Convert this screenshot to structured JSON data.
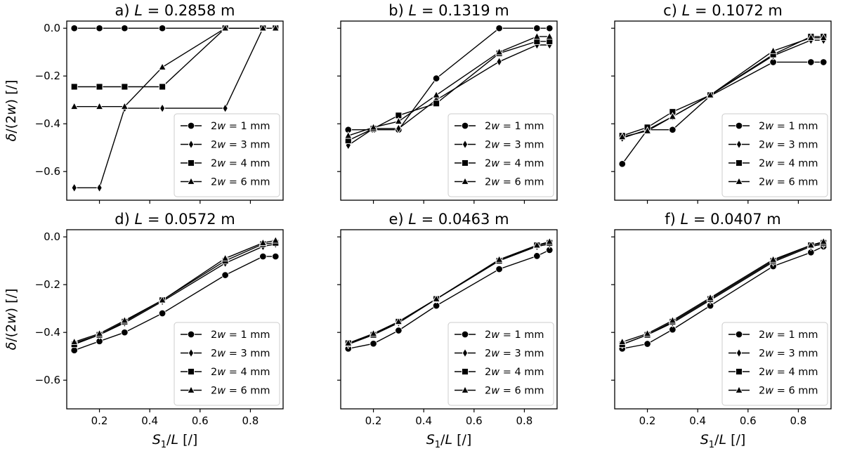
{
  "chart_data": {
    "type": "line",
    "xlabel": "S₁/L [/]",
    "ylabel": "δ/(2w) [/]",
    "xlim": [
      0.07,
      0.93
    ],
    "ylim": [
      -0.72,
      0.03
    ],
    "xticks": [
      0.2,
      0.4,
      0.6,
      0.8
    ],
    "yticks": [
      0.0,
      -0.2,
      -0.4,
      -0.6
    ],
    "x": [
      0.1,
      0.2,
      0.3,
      0.45,
      0.7,
      0.85,
      0.9
    ],
    "legend_position": "lower-right",
    "series_names": [
      "2w = 1 mm",
      "2w = 3 mm",
      "2w = 4 mm",
      "2w = 6 mm"
    ],
    "series_markers": [
      "circle",
      "diamond",
      "square",
      "triangle"
    ],
    "panels": [
      {
        "title": "a) L = 0.2858 m",
        "series": [
          {
            "name": "2w = 1 mm",
            "values": [
              0.0,
              0.0,
              0.0,
              0.0,
              0.0,
              0.0,
              0.0
            ]
          },
          {
            "name": "2w = 3 mm",
            "values": [
              -0.668,
              -0.668,
              -0.335,
              -0.335,
              -0.335,
              0.0,
              0.0
            ]
          },
          {
            "name": "2w = 4 mm",
            "values": [
              -0.245,
              -0.245,
              -0.245,
              -0.245,
              0.0,
              0.0,
              0.0
            ]
          },
          {
            "name": "2w = 6 mm",
            "values": [
              -0.328,
              -0.328,
              -0.328,
              -0.163,
              0.0,
              0.0,
              0.0
            ]
          }
        ]
      },
      {
        "title": "b) L = 0.1319 m",
        "series": [
          {
            "name": "2w = 1 mm",
            "values": [
              -0.425,
              -0.425,
              -0.425,
              -0.21,
              0.0,
              0.0,
              0.0
            ]
          },
          {
            "name": "2w = 3 mm",
            "values": [
              -0.49,
              -0.42,
              -0.42,
              -0.3,
              -0.14,
              -0.07,
              -0.07
            ]
          },
          {
            "name": "2w = 4 mm",
            "values": [
              -0.47,
              -0.42,
              -0.365,
              -0.315,
              -0.105,
              -0.055,
              -0.055
            ]
          },
          {
            "name": "2w = 6 mm",
            "values": [
              -0.45,
              -0.415,
              -0.39,
              -0.28,
              -0.1,
              -0.035,
              -0.035
            ]
          }
        ]
      },
      {
        "title": "c) L = 0.1072 m",
        "series": [
          {
            "name": "2w = 1 mm",
            "values": [
              -0.568,
              -0.425,
              -0.425,
              -0.283,
              -0.142,
              -0.142,
              -0.142
            ]
          },
          {
            "name": "2w = 3 mm",
            "values": [
              -0.46,
              -0.425,
              -0.37,
              -0.28,
              -0.115,
              -0.05,
              -0.05
            ]
          },
          {
            "name": "2w = 4 mm",
            "values": [
              -0.45,
              -0.415,
              -0.35,
              -0.28,
              -0.11,
              -0.035,
              -0.035
            ]
          },
          {
            "name": "2w = 6 mm",
            "values": [
              -0.455,
              -0.43,
              -0.37,
              -0.28,
              -0.095,
              -0.04,
              -0.04
            ]
          }
        ]
      },
      {
        "title": "d) L = 0.0572 m",
        "series": [
          {
            "name": "2w = 1 mm",
            "values": [
              -0.475,
              -0.437,
              -0.4,
              -0.32,
              -0.16,
              -0.082,
              -0.082
            ]
          },
          {
            "name": "2w = 3 mm",
            "values": [
              -0.445,
              -0.41,
              -0.36,
              -0.27,
              -0.11,
              -0.04,
              -0.03
            ]
          },
          {
            "name": "2w = 4 mm",
            "values": [
              -0.45,
              -0.41,
              -0.355,
              -0.265,
              -0.1,
              -0.03,
              -0.025
            ]
          },
          {
            "name": "2w = 6 mm",
            "values": [
              -0.44,
              -0.405,
              -0.35,
              -0.265,
              -0.09,
              -0.025,
              -0.015
            ]
          }
        ]
      },
      {
        "title": "e) L = 0.0463 m",
        "series": [
          {
            "name": "2w = 1 mm",
            "values": [
              -0.468,
              -0.447,
              -0.392,
              -0.288,
              -0.135,
              -0.08,
              -0.055
            ]
          },
          {
            "name": "2w = 3 mm",
            "values": [
              -0.45,
              -0.41,
              -0.36,
              -0.26,
              -0.1,
              -0.04,
              -0.03
            ]
          },
          {
            "name": "2w = 4 mm",
            "values": [
              -0.445,
              -0.41,
              -0.355,
              -0.26,
              -0.1,
              -0.035,
              -0.025
            ]
          },
          {
            "name": "2w = 6 mm",
            "values": [
              -0.445,
              -0.405,
              -0.355,
              -0.26,
              -0.095,
              -0.035,
              -0.02
            ]
          }
        ]
      },
      {
        "title": "f) L = 0.0407 m",
        "series": [
          {
            "name": "2w = 1 mm",
            "values": [
              -0.468,
              -0.448,
              -0.388,
              -0.288,
              -0.123,
              -0.065,
              -0.04
            ]
          },
          {
            "name": "2w = 3 mm",
            "values": [
              -0.45,
              -0.41,
              -0.36,
              -0.265,
              -0.105,
              -0.04,
              -0.03
            ]
          },
          {
            "name": "2w = 4 mm",
            "values": [
              -0.45,
              -0.41,
              -0.355,
              -0.26,
              -0.1,
              -0.035,
              -0.025
            ]
          },
          {
            "name": "2w = 6 mm",
            "values": [
              -0.44,
              -0.405,
              -0.35,
              -0.255,
              -0.095,
              -0.035,
              -0.02
            ]
          }
        ]
      }
    ]
  }
}
